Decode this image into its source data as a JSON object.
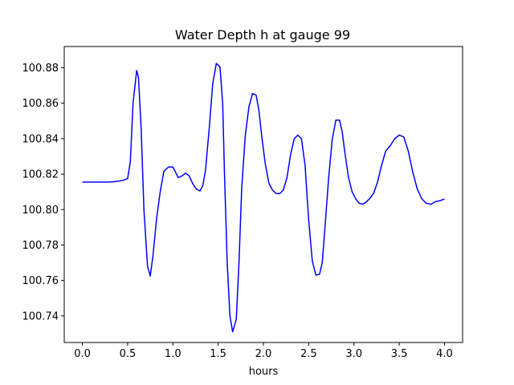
{
  "chart_data": {
    "type": "line",
    "title": "Water Depth h at gauge 99",
    "xlabel": "hours",
    "ylabel": "",
    "xlim": [
      -0.2,
      4.2
    ],
    "ylim": [
      100.725,
      100.892
    ],
    "xticks": [
      0.0,
      0.5,
      1.0,
      1.5,
      2.0,
      2.5,
      3.0,
      3.5,
      4.0
    ],
    "xtick_labels": [
      "0.0",
      "0.5",
      "1.0",
      "1.5",
      "2.0",
      "2.5",
      "3.0",
      "3.5",
      "4.0"
    ],
    "yticks": [
      100.74,
      100.76,
      100.78,
      100.8,
      100.82,
      100.84,
      100.86,
      100.88
    ],
    "ytick_labels": [
      "100.74",
      "100.76",
      "100.78",
      "100.80",
      "100.82",
      "100.84",
      "100.86",
      "100.88"
    ],
    "grid": false,
    "series": [
      {
        "color": "#0000ff",
        "x": [
          0.0,
          0.1,
          0.2,
          0.3,
          0.4,
          0.45,
          0.5,
          0.53,
          0.56,
          0.6,
          0.62,
          0.65,
          0.68,
          0.72,
          0.75,
          0.78,
          0.82,
          0.86,
          0.9,
          0.95,
          1.0,
          1.03,
          1.06,
          1.1,
          1.14,
          1.18,
          1.22,
          1.26,
          1.3,
          1.33,
          1.36,
          1.4,
          1.44,
          1.48,
          1.52,
          1.55,
          1.57,
          1.6,
          1.63,
          1.66,
          1.7,
          1.73,
          1.76,
          1.8,
          1.84,
          1.88,
          1.92,
          1.95,
          1.98,
          2.02,
          2.06,
          2.1,
          2.14,
          2.18,
          2.22,
          2.26,
          2.3,
          2.34,
          2.38,
          2.42,
          2.46,
          2.5,
          2.54,
          2.58,
          2.62,
          2.65,
          2.68,
          2.72,
          2.76,
          2.8,
          2.84,
          2.87,
          2.9,
          2.94,
          2.98,
          3.02,
          3.06,
          3.1,
          3.14,
          3.18,
          3.22,
          3.26,
          3.3,
          3.35,
          3.4,
          3.45,
          3.5,
          3.55,
          3.6,
          3.65,
          3.7,
          3.75,
          3.8,
          3.85,
          3.9,
          3.95,
          4.0
        ],
        "y": [
          100.8155,
          100.8155,
          100.8155,
          100.8155,
          100.816,
          100.8165,
          100.8175,
          100.827,
          100.86,
          100.8785,
          100.8745,
          100.845,
          100.8,
          100.768,
          100.7625,
          100.774,
          100.795,
          100.81,
          100.8215,
          100.824,
          100.824,
          100.821,
          100.818,
          100.819,
          100.8205,
          100.819,
          100.8145,
          100.8115,
          100.8105,
          100.8135,
          100.822,
          100.845,
          100.871,
          100.8825,
          100.8805,
          100.86,
          100.82,
          100.77,
          100.74,
          100.731,
          100.738,
          100.77,
          100.812,
          100.842,
          100.858,
          100.8655,
          100.8645,
          100.856,
          100.842,
          100.826,
          100.815,
          100.811,
          100.809,
          100.809,
          100.811,
          100.818,
          100.831,
          100.84,
          100.842,
          100.84,
          100.825,
          100.794,
          100.771,
          100.763,
          100.7635,
          100.77,
          100.79,
          100.8175,
          100.8395,
          100.8505,
          100.8505,
          100.844,
          100.832,
          100.818,
          100.81,
          100.806,
          100.8035,
          100.803,
          100.8045,
          100.8065,
          100.8095,
          100.8155,
          100.824,
          100.833,
          100.836,
          100.84,
          100.842,
          100.841,
          100.833,
          100.821,
          100.8115,
          100.806,
          100.8035,
          100.803,
          100.8045,
          100.805,
          100.806
        ]
      }
    ]
  }
}
